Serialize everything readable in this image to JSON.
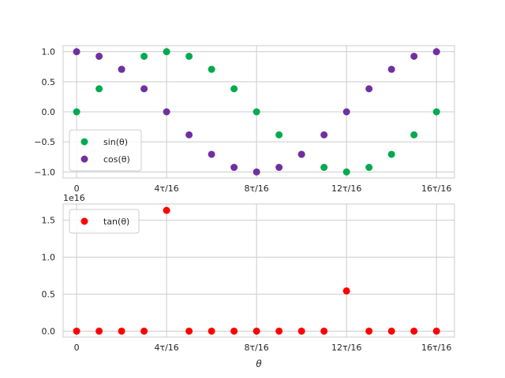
{
  "chart_data": [
    {
      "type": "scatter",
      "x_label": "",
      "x_ticks": [
        {
          "value": 0,
          "label": "0"
        },
        {
          "value": 4,
          "label": "4τ/16"
        },
        {
          "value": 8,
          "label": "8τ/16"
        },
        {
          "value": 12,
          "label": "12τ/16"
        },
        {
          "value": 16,
          "label": "16τ/16"
        }
      ],
      "y_ticks": [
        {
          "value": 1.0,
          "label": "1.0"
        },
        {
          "value": 0.5,
          "label": "0.5"
        },
        {
          "value": 0.0,
          "label": "0.0"
        },
        {
          "value": -0.5,
          "label": "−0.5"
        },
        {
          "value": -1.0,
          "label": "−1.0"
        }
      ],
      "xlim": [
        -0.6,
        16.8
      ],
      "ylim": [
        -1.1,
        1.1
      ],
      "grid": true,
      "legend_position": "lower-left",
      "series": [
        {
          "name": "sin(θ)",
          "color": "#00aa4f",
          "x": [
            0,
            1,
            2,
            3,
            4,
            5,
            6,
            7,
            8,
            9,
            10,
            11,
            12,
            13,
            14,
            15,
            16
          ],
          "y": [
            0.0,
            0.383,
            0.707,
            0.924,
            1.0,
            0.924,
            0.707,
            0.383,
            0.0,
            -0.383,
            -0.707,
            -0.924,
            -1.0,
            -0.924,
            -0.707,
            -0.383,
            0.0
          ]
        },
        {
          "name": "cos(θ)",
          "color": "#7030a0",
          "x": [
            0,
            1,
            2,
            3,
            4,
            5,
            6,
            7,
            8,
            9,
            10,
            11,
            12,
            13,
            14,
            15,
            16
          ],
          "y": [
            1.0,
            0.924,
            0.707,
            0.383,
            0.0,
            -0.383,
            -0.707,
            -0.924,
            -1.0,
            -0.924,
            -0.707,
            -0.383,
            0.0,
            0.383,
            0.707,
            0.924,
            1.0
          ]
        }
      ]
    },
    {
      "type": "scatter",
      "x_label": "θ",
      "y_offset_label": "1e16",
      "x_ticks": [
        {
          "value": 0,
          "label": "0"
        },
        {
          "value": 4,
          "label": "4τ/16"
        },
        {
          "value": 8,
          "label": "8τ/16"
        },
        {
          "value": 12,
          "label": "12τ/16"
        },
        {
          "value": 16,
          "label": "16τ/16"
        }
      ],
      "y_ticks": [
        {
          "value": 1.5,
          "label": "1.5"
        },
        {
          "value": 1.0,
          "label": "1.0"
        },
        {
          "value": 0.5,
          "label": "0.5"
        },
        {
          "value": 0.0,
          "label": "0.0"
        }
      ],
      "xlim": [
        -0.6,
        16.8
      ],
      "ylim": [
        -0.08,
        1.72
      ],
      "grid": true,
      "legend_position": "top-left",
      "series": [
        {
          "name": "tan(θ)",
          "color": "#ff0000",
          "x": [
            0,
            1,
            2,
            3,
            4,
            5,
            6,
            7,
            8,
            9,
            10,
            11,
            12,
            13,
            14,
            15,
            16
          ],
          "y": [
            0,
            0,
            0,
            0,
            1.633,
            0,
            0,
            0,
            0,
            0,
            0,
            0,
            0.544,
            0,
            0,
            0,
            0
          ]
        }
      ]
    }
  ]
}
